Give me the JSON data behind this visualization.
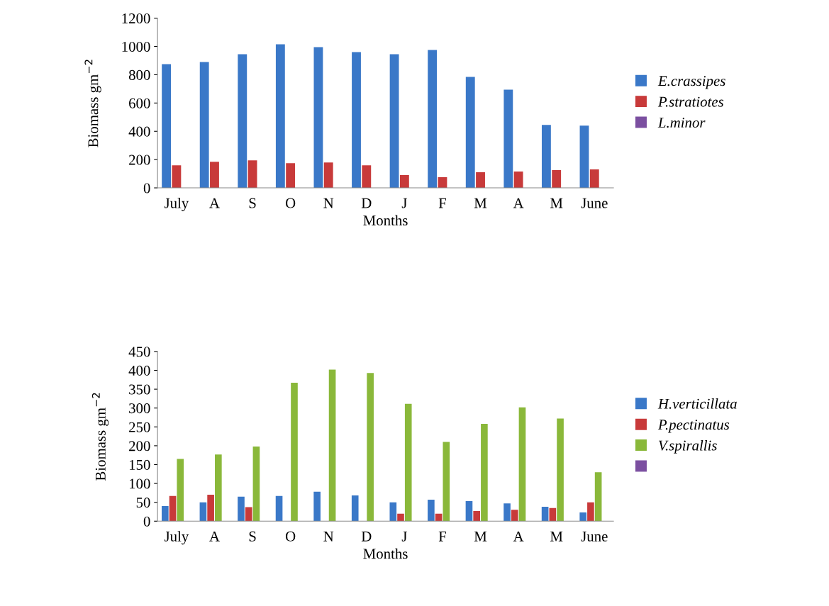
{
  "chart_data": [
    {
      "type": "bar",
      "xlabel": "Months",
      "ylabel": "Biomass gm$^{−2}$",
      "categories": [
        "July",
        "A",
        "S",
        "O",
        "N",
        "D",
        "J",
        "F",
        "M",
        "A",
        "M",
        "June"
      ],
      "series": [
        {
          "name": "E.crassipes",
          "color": "#3a78c8",
          "values": [
            875,
            890,
            945,
            1015,
            995,
            960,
            945,
            975,
            785,
            695,
            445,
            440
          ]
        },
        {
          "name": "P.stratiotes",
          "color": "#c83a3a",
          "values": [
            160,
            185,
            195,
            175,
            180,
            160,
            90,
            75,
            110,
            115,
            125,
            130
          ]
        },
        {
          "name": "L.minor",
          "color": "#7b4fa0",
          "values": [
            null,
            null,
            null,
            null,
            null,
            null,
            null,
            null,
            null,
            null,
            null,
            null
          ]
        }
      ],
      "ylim": [
        0,
        1200
      ],
      "yticks": [
        0,
        200,
        400,
        600,
        800,
        1000,
        1200
      ],
      "grid": false,
      "legend": "right"
    },
    {
      "type": "bar",
      "xlabel": "Months",
      "ylabel": "Biomass gm$^{−2}$",
      "categories": [
        "July",
        "A",
        "S",
        "O",
        "N",
        "D",
        "J",
        "F",
        "M",
        "A",
        "M",
        "June"
      ],
      "series": [
        {
          "name": "H.verticillata",
          "color": "#3a78c8",
          "values": [
            40,
            50,
            65,
            67,
            78,
            68,
            50,
            57,
            53,
            47,
            38,
            23
          ]
        },
        {
          "name": "P.pectinatus",
          "color": "#c83a3a",
          "values": [
            67,
            70,
            37,
            null,
            null,
            null,
            20,
            20,
            27,
            30,
            35,
            50
          ]
        },
        {
          "name": "V.spirallis",
          "color": "#8ab83a",
          "values": [
            165,
            177,
            198,
            367,
            402,
            393,
            311,
            210,
            258,
            302,
            272,
            130
          ]
        },
        {
          "color": "#7b4fa0",
          "values": [
            null,
            null,
            null,
            null,
            null,
            null,
            null,
            null,
            null,
            null,
            null,
            null
          ]
        }
      ],
      "ylim": [
        0,
        450
      ],
      "yticks": [
        0,
        50,
        100,
        150,
        200,
        250,
        300,
        350,
        400,
        450
      ],
      "grid": false,
      "legend": "right"
    }
  ]
}
